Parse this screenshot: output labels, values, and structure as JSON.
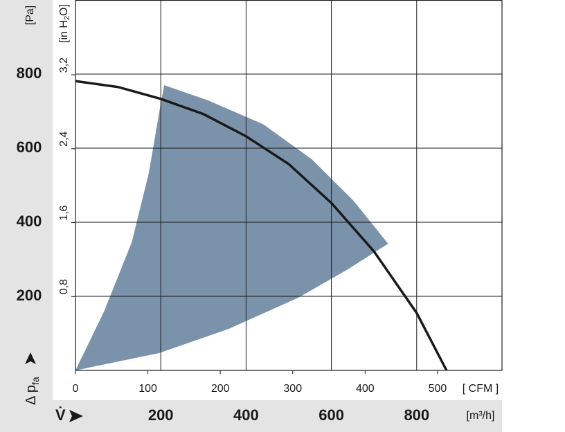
{
  "chart_data": {
    "type": "line",
    "y_label": "[Pa]",
    "y2_label_parts": [
      "[in H",
      "2",
      "O]"
    ],
    "y_symbol": "Δ p",
    "y_symbol_sub": "fa",
    "x_symbol": "V̇",
    "x_label": "[m³/h]",
    "x2_label": "[ CFM ]",
    "xlim": [
      0,
      1000
    ],
    "xticks": [
      200,
      400,
      600,
      800
    ],
    "x2lim": [
      0,
      589
    ],
    "x2ticks": [
      0,
      100,
      200,
      300,
      400,
      500
    ],
    "ylim": [
      0,
      1000
    ],
    "yticks": [
      200,
      400,
      600,
      800
    ],
    "y2lim": [
      0,
      4.01
    ],
    "y2ticks": [
      {
        "value": 0.8,
        "label": "0,8"
      },
      {
        "value": 1.6,
        "label": "1,6"
      },
      {
        "value": 2.4,
        "label": "2,4"
      },
      {
        "value": 3.2,
        "label": "3,2"
      }
    ],
    "grid": true,
    "series": [
      {
        "color": "#1a1a1a",
        "x": [
          0,
          100,
          200,
          300,
          400,
          500,
          600,
          700,
          800,
          870
        ],
        "values": [
          781,
          765,
          733,
          692,
          632,
          557,
          452,
          321,
          155,
          0
        ]
      }
    ],
    "area": {
      "color": "#7b93aa",
      "x": [
        0,
        67,
        132,
        172,
        197,
        208,
        311,
        441,
        554,
        652,
        733,
        636,
        522,
        359,
        197
      ],
      "y": [
        0,
        159,
        346,
        533,
        701,
        770,
        729,
        664,
        570,
        458,
        342,
        271,
        196,
        112,
        47
      ]
    }
  }
}
